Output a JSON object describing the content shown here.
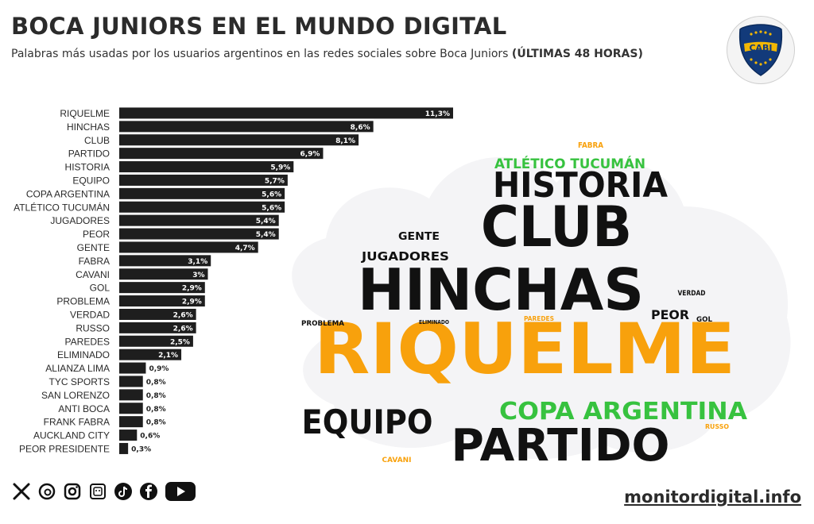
{
  "header": {
    "title": "BOCA JUNIORS EN EL MUNDO DIGITAL",
    "subtitle": "Palabras más usadas por los usuarios argentinos en las redes sociales sobre Boca Juniors",
    "subtitle_bold": "(ÚLTIMAS 48 HORAS)"
  },
  "logo": {
    "text": "CABJ",
    "primary": "#123a7a",
    "secondary": "#f2b705"
  },
  "colors": {
    "bar": "#1e1e1e",
    "orange": "#f8a10c",
    "green": "#37c23f",
    "black": "#111111",
    "cloud": "#f4f4f6"
  },
  "chart_data": {
    "type": "bar",
    "orientation": "horizontal",
    "categories": [
      "RIQUELME",
      "HINCHAS",
      "CLUB",
      "PARTIDO",
      "HISTORIA",
      "EQUIPO",
      "COPA ARGENTINA",
      "ATLÉTICO TUCUMÁN",
      "JUGADORES",
      "PEOR",
      "GENTE",
      "FABRA",
      "CAVANI",
      "GOL",
      "PROBLEMA",
      "VERDAD",
      "RUSSO",
      "PAREDES",
      "ELIMINADO",
      "ALIANZA LIMA",
      "TYC SPORTS",
      "SAN LORENZO",
      "ANTI BOCA",
      "FRANK FABRA",
      "AUCKLAND CITY",
      "PEOR PRESIDENTE"
    ],
    "values": [
      11.3,
      8.6,
      8.1,
      6.9,
      5.9,
      5.7,
      5.6,
      5.6,
      5.4,
      5.4,
      4.7,
      3.1,
      3,
      2.9,
      2.9,
      2.6,
      2.6,
      2.5,
      2.1,
      0.9,
      0.8,
      0.8,
      0.8,
      0.8,
      0.6,
      0.3
    ],
    "labels": [
      "11,3%",
      "8,6%",
      "8,1%",
      "6,9%",
      "5,9%",
      "5,7%",
      "5,6%",
      "5,6%",
      "5,4%",
      "5,4%",
      "4,7%",
      "3,1%",
      "3%",
      "2,9%",
      "2,9%",
      "2,6%",
      "2,6%",
      "2,5%",
      "2,1%",
      "0,9%",
      "0,8%",
      "0,8%",
      "0,8%",
      "0,8%",
      "0,6%",
      "0,3%"
    ],
    "xlim": [
      0,
      11.3
    ]
  },
  "word_cloud": [
    {
      "text": "RIQUELME",
      "color": "orange",
      "size": "huge"
    },
    {
      "text": "HINCHAS",
      "color": "black",
      "size": "xl"
    },
    {
      "text": "CLUB",
      "color": "black",
      "size": "xl"
    },
    {
      "text": "PARTIDO",
      "color": "black",
      "size": "l"
    },
    {
      "text": "HISTORIA",
      "color": "black",
      "size": "l"
    },
    {
      "text": "EQUIPO",
      "color": "black",
      "size": "l"
    },
    {
      "text": "COPA ARGENTINA",
      "color": "green",
      "size": "m"
    },
    {
      "text": "ATLÉTICO TUCUMÁN",
      "color": "green",
      "size": "s"
    },
    {
      "text": "JUGADORES",
      "color": "black",
      "size": "s"
    },
    {
      "text": "PEOR",
      "color": "black",
      "size": "s"
    },
    {
      "text": "GENTE",
      "color": "black",
      "size": "s"
    },
    {
      "text": "FABRA",
      "color": "orange",
      "size": "xs"
    },
    {
      "text": "CAVANI",
      "color": "orange",
      "size": "xs"
    },
    {
      "text": "GOL",
      "color": "black",
      "size": "xs"
    },
    {
      "text": "PROBLEMA",
      "color": "black",
      "size": "xs"
    },
    {
      "text": "VERDAD",
      "color": "black",
      "size": "xs"
    },
    {
      "text": "RUSSO",
      "color": "orange",
      "size": "xs"
    },
    {
      "text": "PAREDES",
      "color": "orange",
      "size": "xxs"
    },
    {
      "text": "ELIMINADO",
      "color": "black",
      "size": "xxs"
    }
  ],
  "social_icons": [
    "x-icon",
    "threads-icon",
    "instagram-icon",
    "telegram-icon",
    "tiktok-icon",
    "facebook-icon",
    "youtube-icon"
  ],
  "footer": {
    "site": "monitordigital.info"
  }
}
